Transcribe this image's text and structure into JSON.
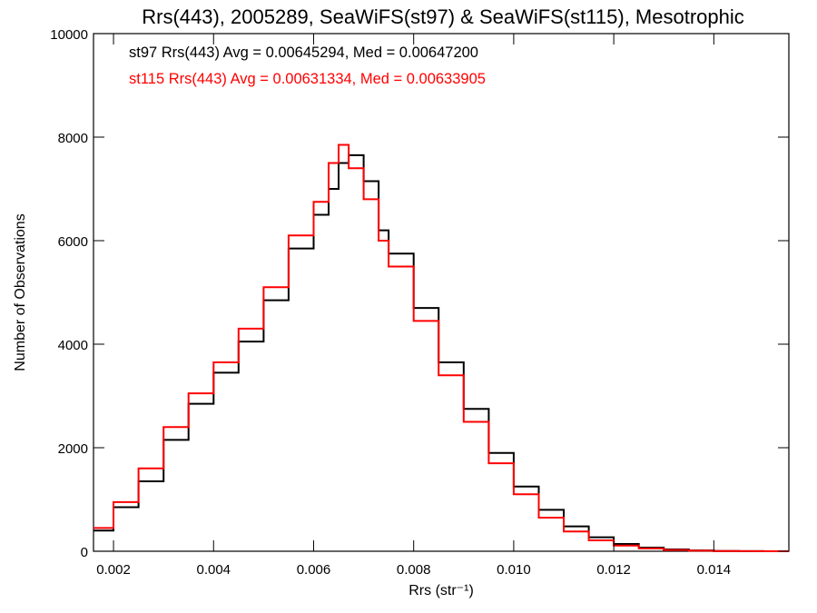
{
  "chart_data": {
    "type": "line",
    "title": "Rrs(443), 2005289, SeaWiFS(st97) & SeaWiFS(st115), Mesotrophic",
    "xlabel": "Rrs (str⁻¹)",
    "ylabel": "Number of Observations",
    "xlim": [
      0.0016,
      0.0155
    ],
    "ylim": [
      0,
      10000
    ],
    "xticks": [
      0.002,
      0.004,
      0.006,
      0.008,
      0.01,
      0.012,
      0.014
    ],
    "xtick_labels": [
      "0.002",
      "0.004",
      "0.006",
      "0.008",
      "0.010",
      "0.012",
      "0.014"
    ],
    "yticks": [
      0,
      2000,
      4000,
      6000,
      8000,
      10000
    ],
    "ytick_labels": [
      "0",
      "2000",
      "4000",
      "6000",
      "8000",
      "10000"
    ],
    "grid": false,
    "annotations": [
      {
        "text": "st97 Rrs(443) Avg = 0.00645294, Med = 0.00647200",
        "color": "#000000"
      },
      {
        "text": "st115 Rrs(443) Avg = 0.00631334, Med = 0.00633905",
        "color": "#ff0000"
      }
    ],
    "series": [
      {
        "color": "#000000",
        "x": [
          0.0016,
          0.002,
          0.0025,
          0.003,
          0.0035,
          0.004,
          0.0045,
          0.005,
          0.0055,
          0.006,
          0.0063,
          0.0065,
          0.0067,
          0.007,
          0.0073,
          0.0075,
          0.008,
          0.0085,
          0.009,
          0.0095,
          0.01,
          0.0105,
          0.011,
          0.0115,
          0.012,
          0.0125,
          0.013,
          0.0135,
          0.014,
          0.0145,
          0.015,
          0.0155
        ],
        "y": [
          400,
          850,
          1350,
          2150,
          2850,
          3450,
          4050,
          4850,
          5850,
          6500,
          7000,
          7500,
          7650,
          7150,
          6200,
          5750,
          4700,
          3650,
          2750,
          1900,
          1250,
          800,
          480,
          270,
          140,
          70,
          35,
          15,
          6,
          2,
          0,
          0
        ]
      },
      {
        "color": "#ff0000",
        "x": [
          0.0016,
          0.002,
          0.0025,
          0.003,
          0.0035,
          0.004,
          0.0045,
          0.005,
          0.0055,
          0.006,
          0.0063,
          0.0065,
          0.0067,
          0.007,
          0.0073,
          0.0075,
          0.008,
          0.0085,
          0.009,
          0.0095,
          0.01,
          0.0105,
          0.011,
          0.0115,
          0.012,
          0.0125,
          0.013,
          0.0135,
          0.014,
          0.0145,
          0.015,
          0.0155
        ],
        "y": [
          450,
          950,
          1600,
          2400,
          3050,
          3650,
          4300,
          5100,
          6100,
          6750,
          7500,
          7850,
          7400,
          6800,
          6000,
          5500,
          4450,
          3400,
          2500,
          1700,
          1100,
          650,
          380,
          210,
          110,
          55,
          25,
          10,
          4,
          1,
          0,
          0
        ]
      }
    ]
  }
}
